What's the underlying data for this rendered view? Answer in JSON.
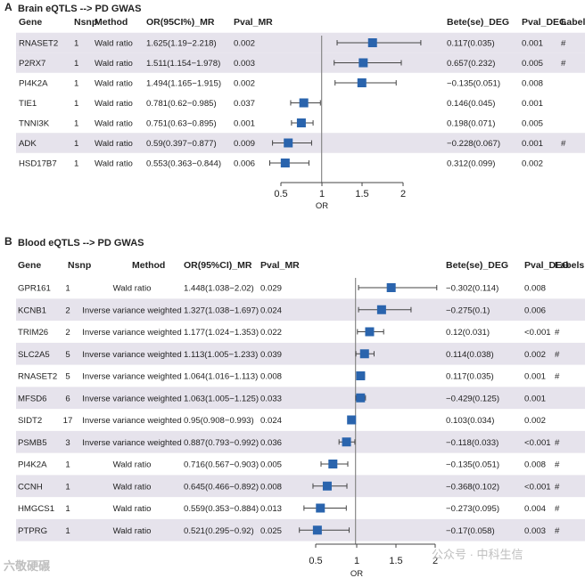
{
  "colors": {
    "stripe": "#e6e3ec",
    "box": "#2a64ad",
    "line": "#444444",
    "ref": "#888888",
    "text": "#222222",
    "watermark": "#bfbfbf"
  },
  "chart_data": [
    {
      "type": "forest",
      "label": "A",
      "title": "Brain eQTLS --> PD GWAS",
      "columns": [
        "Gene",
        "Nsnp",
        "Method",
        "OR(95CI%)_MR",
        "Pval_MR",
        "Bete(se)_DEG",
        "Pval_DEG",
        "Labels"
      ],
      "xlabel": "OR",
      "xticks": [
        "0.5",
        "1",
        "1.5",
        "2"
      ],
      "xlim": [
        0.3,
        2.0
      ],
      "ref_line": 1,
      "rows": [
        {
          "gene": "RNASET2",
          "nsnp": "1",
          "method": "Wald ratio",
          "or_ci": "1.625(1.19−2.218)",
          "pval_mr": "0.002",
          "beta_deg": "0.117(0.035)",
          "pval_deg": "0.001",
          "label": "#",
          "or": 1.625,
          "lo": 1.19,
          "hi": 2.218,
          "shade": true
        },
        {
          "gene": "P2RX7",
          "nsnp": "1",
          "method": "Wald ratio",
          "or_ci": "1.511(1.154−1.978)",
          "pval_mr": "0.003",
          "beta_deg": "0.657(0.232)",
          "pval_deg": "0.005",
          "label": "#",
          "or": 1.511,
          "lo": 1.154,
          "hi": 1.978,
          "shade": true
        },
        {
          "gene": "PI4K2A",
          "nsnp": "1",
          "method": "Wald ratio",
          "or_ci": "1.494(1.165−1.915)",
          "pval_mr": "0.002",
          "beta_deg": "−0.135(0.051)",
          "pval_deg": "0.008",
          "label": "",
          "or": 1.494,
          "lo": 1.165,
          "hi": 1.915,
          "shade": false
        },
        {
          "gene": "TIE1",
          "nsnp": "1",
          "method": "Wald ratio",
          "or_ci": "0.781(0.62−0.985)",
          "pval_mr": "0.037",
          "beta_deg": "0.146(0.045)",
          "pval_deg": "0.001",
          "label": "",
          "or": 0.781,
          "lo": 0.62,
          "hi": 0.985,
          "shade": false
        },
        {
          "gene": "TNNI3K",
          "nsnp": "1",
          "method": "Wald ratio",
          "or_ci": "0.751(0.63−0.895)",
          "pval_mr": "0.001",
          "beta_deg": "0.198(0.071)",
          "pval_deg": "0.005",
          "label": "",
          "or": 0.751,
          "lo": 0.63,
          "hi": 0.895,
          "shade": false
        },
        {
          "gene": "ADK",
          "nsnp": "1",
          "method": "Wald ratio",
          "or_ci": "0.59(0.397−0.877)",
          "pval_mr": "0.009",
          "beta_deg": "−0.228(0.067)",
          "pval_deg": "0.001",
          "label": "#",
          "or": 0.59,
          "lo": 0.397,
          "hi": 0.877,
          "shade": true
        },
        {
          "gene": "HSD17B7",
          "nsnp": "1",
          "method": "Wald ratio",
          "or_ci": "0.553(0.363−0.844)",
          "pval_mr": "0.006",
          "beta_deg": "0.312(0.099)",
          "pval_deg": "0.002",
          "label": "",
          "or": 0.553,
          "lo": 0.363,
          "hi": 0.844,
          "shade": false
        }
      ]
    },
    {
      "type": "forest",
      "label": "B",
      "title": "Blood eQTLS --> PD GWAS",
      "columns": [
        "Gene",
        "Nsnp",
        "Method",
        "OR(95%CI)_MR",
        "Pval_MR",
        "Bete(se)_DEG",
        "Pval_DEG",
        "Labels"
      ],
      "xlabel": "OR",
      "xticks": [
        "0.5",
        "1",
        "1.5",
        "2"
      ],
      "xlim": [
        0.25,
        2.0
      ],
      "ref_line": 1,
      "rows": [
        {
          "gene": "GPR161",
          "nsnp": "1",
          "method": "Wald ratio",
          "or_ci": "1.448(1.038−2.02)",
          "pval_mr": "0.029",
          "beta_deg": "−0.302(0.114)",
          "pval_deg": "0.008",
          "label": "",
          "or": 1.448,
          "lo": 1.038,
          "hi": 2.02,
          "shade": false
        },
        {
          "gene": "KCNB1",
          "nsnp": "2",
          "method": "Inverse variance weighted",
          "or_ci": "1.327(1.038−1.697)",
          "pval_mr": "0.024",
          "beta_deg": "−0.275(0.1)",
          "pval_deg": "0.006",
          "label": "",
          "or": 1.327,
          "lo": 1.038,
          "hi": 1.697,
          "shade": true
        },
        {
          "gene": "TRIM26",
          "nsnp": "2",
          "method": "Inverse variance weighted",
          "or_ci": "1.177(1.024−1.353)",
          "pval_mr": "0.022",
          "beta_deg": "0.12(0.031)",
          "pval_deg": "<0.001",
          "label": "#",
          "or": 1.177,
          "lo": 1.024,
          "hi": 1.353,
          "shade": false
        },
        {
          "gene": "SLC2A5",
          "nsnp": "5",
          "method": "Inverse variance weighted",
          "or_ci": "1.113(1.005−1.233)",
          "pval_mr": "0.039",
          "beta_deg": "0.114(0.038)",
          "pval_deg": "0.002",
          "label": "#",
          "or": 1.113,
          "lo": 1.005,
          "hi": 1.233,
          "shade": true
        },
        {
          "gene": "RNASET2",
          "nsnp": "5",
          "method": "Inverse variance weighted",
          "or_ci": "1.064(1.016−1.113)",
          "pval_mr": "0.008",
          "beta_deg": "0.117(0.035)",
          "pval_deg": "0.001",
          "label": "#",
          "or": 1.064,
          "lo": 1.016,
          "hi": 1.113,
          "shade": false
        },
        {
          "gene": "MFSD6",
          "nsnp": "6",
          "method": "Inverse variance weighted",
          "or_ci": "1.063(1.005−1.125)",
          "pval_mr": "0.033",
          "beta_deg": "−0.429(0.125)",
          "pval_deg": "0.001",
          "label": "",
          "or": 1.063,
          "lo": 1.005,
          "hi": 1.125,
          "shade": true
        },
        {
          "gene": "SIDT2",
          "nsnp": "17",
          "method": "Inverse variance weighted",
          "or_ci": "0.95(0.908−0.993)",
          "pval_mr": "0.024",
          "beta_deg": "0.103(0.034)",
          "pval_deg": "0.002",
          "label": "",
          "or": 0.95,
          "lo": 0.908,
          "hi": 0.993,
          "shade": false
        },
        {
          "gene": "PSMB5",
          "nsnp": "3",
          "method": "Inverse variance weighted",
          "or_ci": "0.887(0.793−0.992)",
          "pval_mr": "0.036",
          "beta_deg": "−0.118(0.033)",
          "pval_deg": "<0.001",
          "label": "#",
          "or": 0.887,
          "lo": 0.793,
          "hi": 0.992,
          "shade": true
        },
        {
          "gene": "PI4K2A",
          "nsnp": "1",
          "method": "Wald ratio",
          "or_ci": "0.716(0.567−0.903)",
          "pval_mr": "0.005",
          "beta_deg": "−0.135(0.051)",
          "pval_deg": "0.008",
          "label": "#",
          "or": 0.716,
          "lo": 0.567,
          "hi": 0.903,
          "shade": false
        },
        {
          "gene": "CCNH",
          "nsnp": "1",
          "method": "Wald ratio",
          "or_ci": "0.645(0.466−0.892)",
          "pval_mr": "0.008",
          "beta_deg": "−0.368(0.102)",
          "pval_deg": "<0.001",
          "label": "#",
          "or": 0.645,
          "lo": 0.466,
          "hi": 0.892,
          "shade": true
        },
        {
          "gene": "HMGCS1",
          "nsnp": "1",
          "method": "Wald ratio",
          "or_ci": "0.559(0.353−0.884)",
          "pval_mr": "0.013",
          "beta_deg": "−0.273(0.095)",
          "pval_deg": "0.004",
          "label": "#",
          "or": 0.559,
          "lo": 0.353,
          "hi": 0.884,
          "shade": false
        },
        {
          "gene": "PTPRG",
          "nsnp": "1",
          "method": "Wald ratio",
          "or_ci": "0.521(0.295−0.92)",
          "pval_mr": "0.025",
          "beta_deg": "−0.17(0.058)",
          "pval_deg": "0.003",
          "label": "#",
          "or": 0.521,
          "lo": 0.295,
          "hi": 0.92,
          "shade": true
        }
      ]
    }
  ],
  "watermarks": {
    "left": "六敬硬碾",
    "right": "公众号 · 中科生信"
  }
}
